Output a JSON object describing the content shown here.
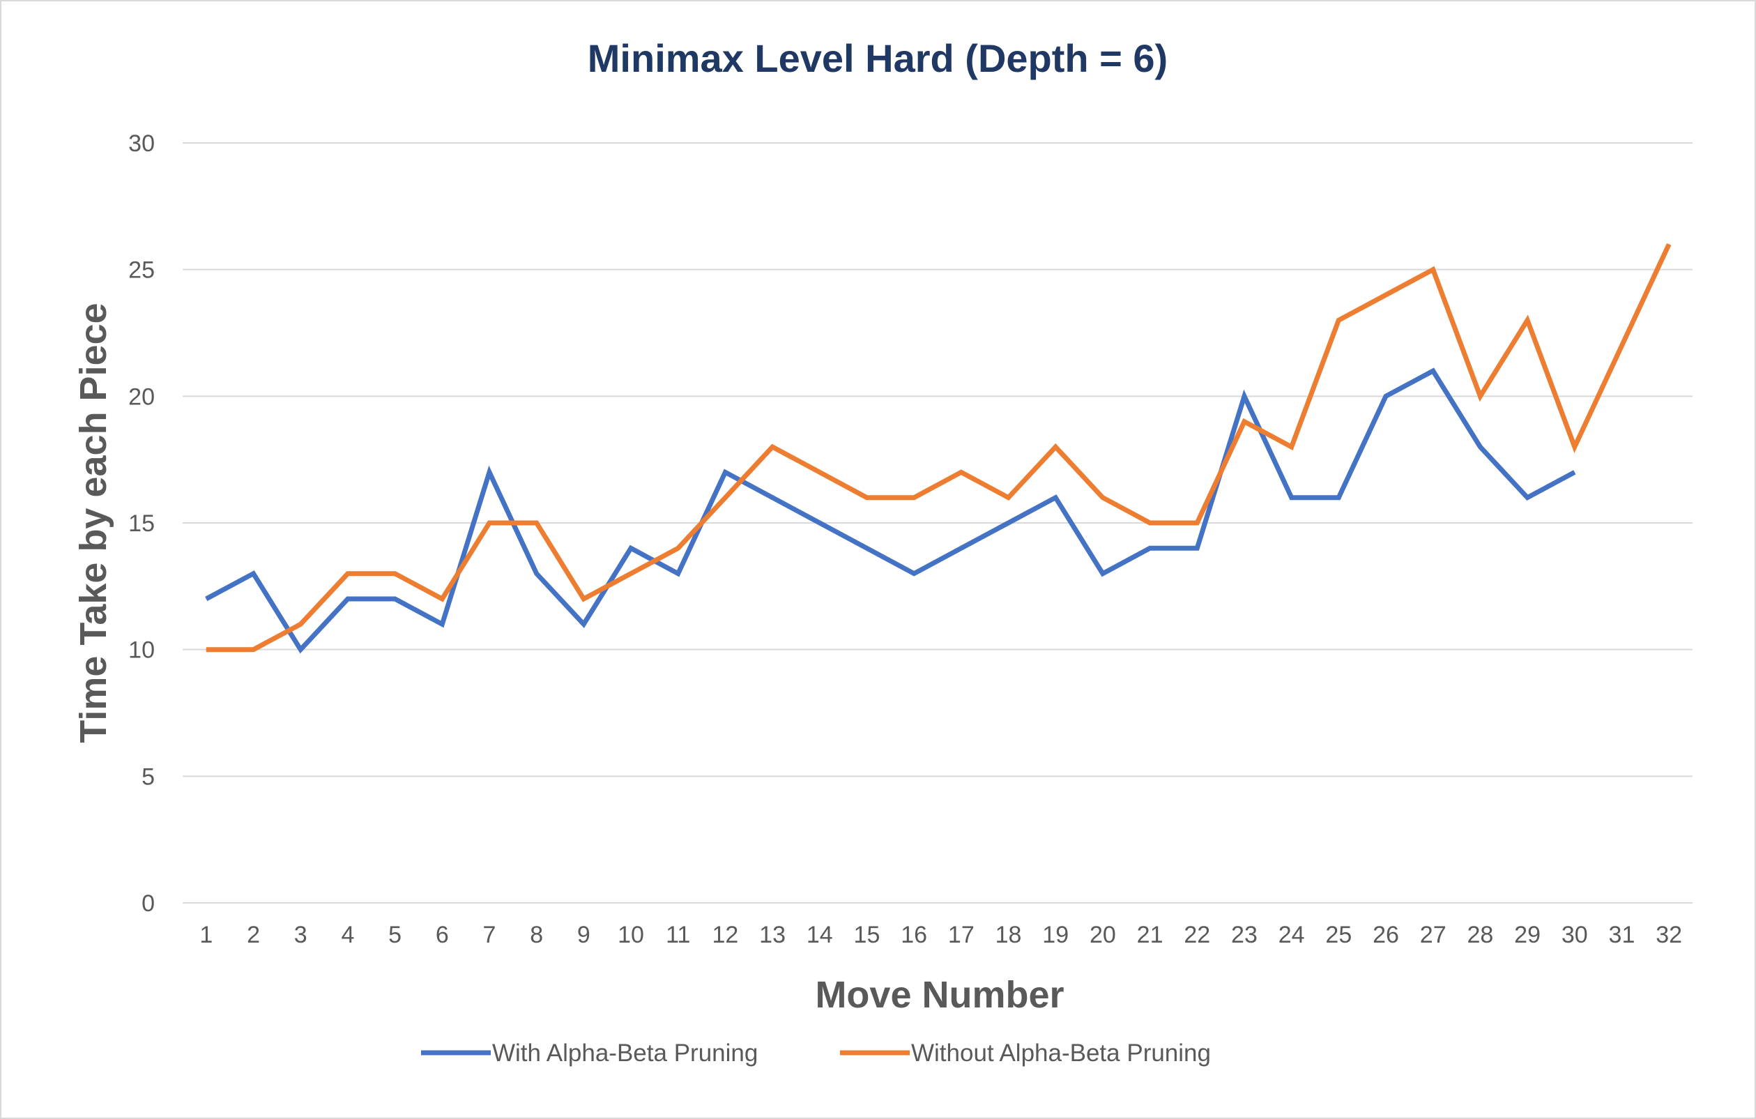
{
  "chart_data": {
    "type": "line",
    "title": "Minimax Level Hard (Depth = 6)",
    "xlabel": "Move Number",
    "ylabel": "Time Take by each Piece",
    "ylim": [
      0,
      30
    ],
    "ytick_step": 5,
    "grid": true,
    "legend_position": "bottom",
    "categories": [
      "1",
      "2",
      "3",
      "4",
      "5",
      "6",
      "7",
      "8",
      "9",
      "10",
      "11",
      "12",
      "13",
      "14",
      "15",
      "16",
      "17",
      "18",
      "19",
      "20",
      "21",
      "22",
      "23",
      "24",
      "25",
      "26",
      "27",
      "28",
      "29",
      "30",
      "31",
      "32"
    ],
    "series": [
      {
        "name": "With Alpha-Beta Pruning",
        "color": "#4472c4",
        "values": [
          12,
          13,
          10,
          12,
          12,
          11,
          17,
          13,
          11,
          14,
          13,
          17,
          16,
          15,
          14,
          13,
          14,
          15,
          16,
          13,
          14,
          14,
          20,
          16,
          16,
          20,
          21,
          18,
          16,
          17,
          null,
          null
        ]
      },
      {
        "name": "Without Alpha-Beta Pruning",
        "color": "#ed7d31",
        "values": [
          10,
          10,
          11,
          13,
          13,
          12,
          15,
          15,
          12,
          13,
          14,
          16,
          18,
          17,
          16,
          16,
          17,
          16,
          18,
          16,
          15,
          15,
          19,
          18,
          23,
          24,
          25,
          20,
          23,
          18,
          22,
          26
        ]
      }
    ]
  }
}
